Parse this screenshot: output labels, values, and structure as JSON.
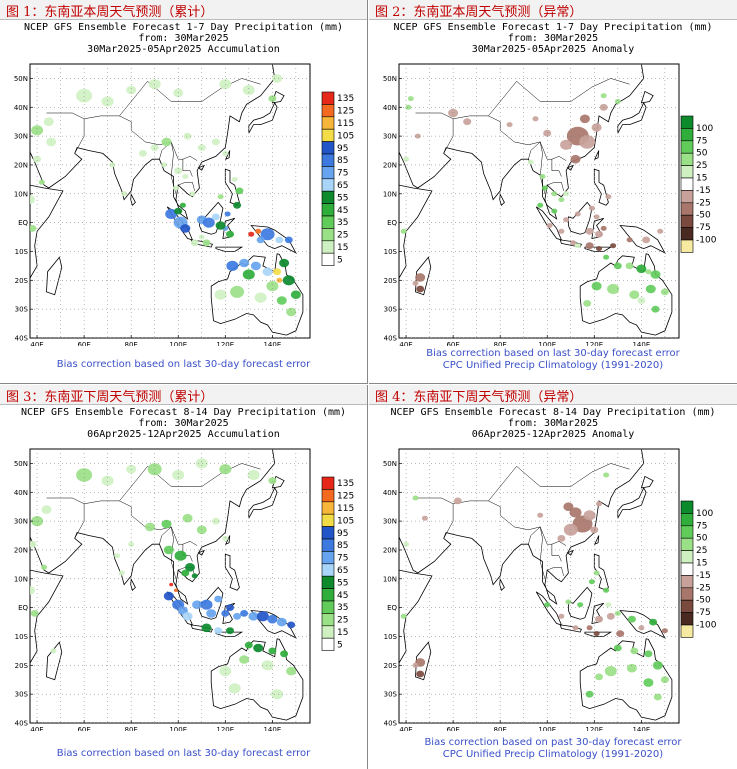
{
  "chart_data": [
    {
      "type": "heatmap",
      "panel_title": "图 1：东南亚本周天气预测（累计）",
      "title": "NCEP GFS Ensemble Forecast 1-7 Day Precipitation (mm)",
      "from": "from: 30Mar2025",
      "period": "30Mar2025-05Apr2025 Accumulation",
      "lon_labels": [
        "40E",
        "60E",
        "80E",
        "100E",
        "120E",
        "140E"
      ],
      "lat_labels": [
        "50N",
        "40N",
        "30N",
        "20N",
        "10N",
        "EQ",
        "10S",
        "20S",
        "30S",
        "40S"
      ],
      "colorbar_values": [
        "135",
        "125",
        "115",
        "105",
        "95",
        "85",
        "75",
        "65",
        "55",
        "45",
        "35",
        "25",
        "15",
        "5"
      ],
      "colorbar_colors": [
        "#e5281a",
        "#f46a20",
        "#f7b539",
        "#f3dd46",
        "#2255c8",
        "#3c7ae0",
        "#67a4ef",
        "#a9d6f8",
        "#0c8a2c",
        "#2fae3b",
        "#62cc5b",
        "#9ae087",
        "#cff1c2",
        "#ffffff"
      ],
      "note": "Bias correction based on last 30-day forecast error"
    },
    {
      "type": "heatmap",
      "panel_title": "图 2：东南亚本周天气预测（异常）",
      "title": "NCEP GFS Ensemble Forecast 1-7 Day Precipitation (mm)",
      "from": "from: 30Mar2025",
      "period": "30Mar2025-05Apr2025 Anomaly",
      "lon_labels": [
        "40E",
        "60E",
        "80E",
        "100E",
        "120E",
        "140E"
      ],
      "lat_labels": [
        "50N",
        "40N",
        "30N",
        "20N",
        "10N",
        "EQ",
        "10S",
        "20S",
        "30S",
        "40S"
      ],
      "colorbar_values": [
        "100",
        "75",
        "50",
        "25",
        "15",
        "-15",
        "-25",
        "-50",
        "-75",
        "-100"
      ],
      "colorbar_colors": [
        "#0c8a2c",
        "#2fae3b",
        "#62cc5b",
        "#9ae087",
        "#cff1c2",
        "#ffffff",
        "#c8a29a",
        "#a8766b",
        "#7a4a3e",
        "#4a2a20",
        "#f6eaa0"
      ],
      "note": "Bias correction based on last 30-day forecast error",
      "note2": "CPC Unified Precip Climatology (1991-2020)"
    },
    {
      "type": "heatmap",
      "panel_title": "图 3：东南亚下周天气预测（累计）",
      "title": "NCEP GFS Ensemble Forecast 8-14 Day Precipitation (mm)",
      "from": "from: 30Mar2025",
      "period": "06Apr2025-12Apr2025 Accumulation",
      "lon_labels": [
        "40E",
        "60E",
        "80E",
        "100E",
        "120E",
        "140E"
      ],
      "lat_labels": [
        "50N",
        "40N",
        "30N",
        "20N",
        "10N",
        "EQ",
        "10S",
        "20S",
        "30S",
        "40S"
      ],
      "colorbar_values": [
        "135",
        "125",
        "115",
        "105",
        "95",
        "85",
        "75",
        "65",
        "55",
        "45",
        "35",
        "25",
        "15",
        "5"
      ],
      "colorbar_colors": [
        "#e5281a",
        "#f46a20",
        "#f7b539",
        "#f3dd46",
        "#2255c8",
        "#3c7ae0",
        "#67a4ef",
        "#a9d6f8",
        "#0c8a2c",
        "#2fae3b",
        "#62cc5b",
        "#9ae087",
        "#cff1c2",
        "#ffffff"
      ],
      "note": "Bias correction based on last 30-day forecast error"
    },
    {
      "type": "heatmap",
      "panel_title": "图 4：东南亚下周天气预测（异常）",
      "title": "NCEP GFS Ensemble Forecast 8-14 Day Precipitation (mm)",
      "from": "from: 30Mar2025",
      "period": "06Apr2025-12Apr2025 Anomaly",
      "lon_labels": [
        "40E",
        "60E",
        "80E",
        "100E",
        "120E",
        "140E"
      ],
      "lat_labels": [
        "50N",
        "40N",
        "30N",
        "20N",
        "10N",
        "EQ",
        "10S",
        "20S",
        "30S",
        "40S"
      ],
      "colorbar_values": [
        "100",
        "75",
        "50",
        "25",
        "15",
        "-15",
        "-25",
        "-50",
        "-75",
        "-100"
      ],
      "colorbar_colors": [
        "#0c8a2c",
        "#2fae3b",
        "#62cc5b",
        "#9ae087",
        "#cff1c2",
        "#ffffff",
        "#c8a29a",
        "#a8766b",
        "#7a4a3e",
        "#4a2a20",
        "#f6eaa0"
      ],
      "note": "Bias correction based on past 30-day forecast error",
      "note2": "CPC Unified Precip Climatology (1991-2020)"
    }
  ]
}
